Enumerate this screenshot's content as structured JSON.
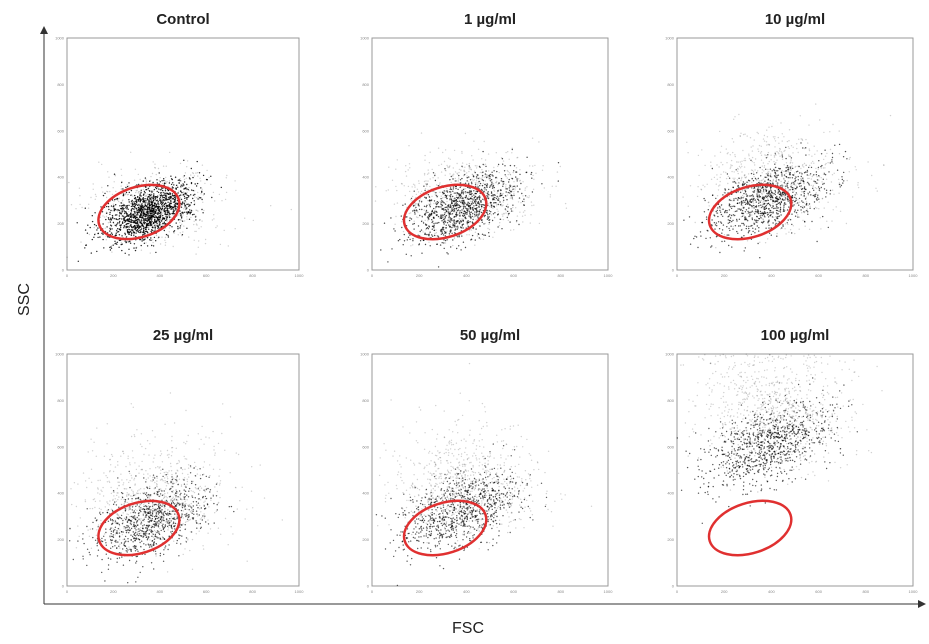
{
  "chart_data": {
    "type": "scatter",
    "description_free": true,
    "xlabel": "FSC",
    "ylabel": "SSC",
    "x_ticks": [
      "0",
      "200",
      "400",
      "600",
      "800",
      "1000"
    ],
    "y_ticks": [
      "0",
      "200",
      "400",
      "600",
      "800",
      "1000"
    ],
    "xlim": [
      0,
      1000
    ],
    "ylim": [
      0,
      1000
    ],
    "grid": false,
    "gate_color": "#e03030",
    "panels": [
      {
        "title": "Control",
        "density": 1.0,
        "spread": 0.35,
        "center": [
          350,
          250
        ],
        "upper_spread": 0.1
      },
      {
        "title": "1 µg/ml",
        "density": 0.7,
        "spread": 0.55,
        "center": [
          380,
          270
        ],
        "upper_spread": 0.25
      },
      {
        "title": "10 µg/ml",
        "density": 0.65,
        "spread": 0.6,
        "center": [
          380,
          300
        ],
        "upper_spread": 0.35
      },
      {
        "title": "25 µg/ml",
        "density": 0.6,
        "spread": 0.65,
        "center": [
          360,
          280
        ],
        "upper_spread": 0.45
      },
      {
        "title": "50 µg/ml",
        "density": 0.58,
        "spread": 0.65,
        "center": [
          370,
          320
        ],
        "upper_spread": 0.5
      },
      {
        "title": "100 µg/ml",
        "density": 0.6,
        "spread": 0.7,
        "center": [
          380,
          600
        ],
        "upper_spread": 0.8
      }
    ],
    "gates": [
      {
        "center": [
          310,
          250
        ],
        "rx": 200,
        "ry": 120
      }
    ]
  }
}
